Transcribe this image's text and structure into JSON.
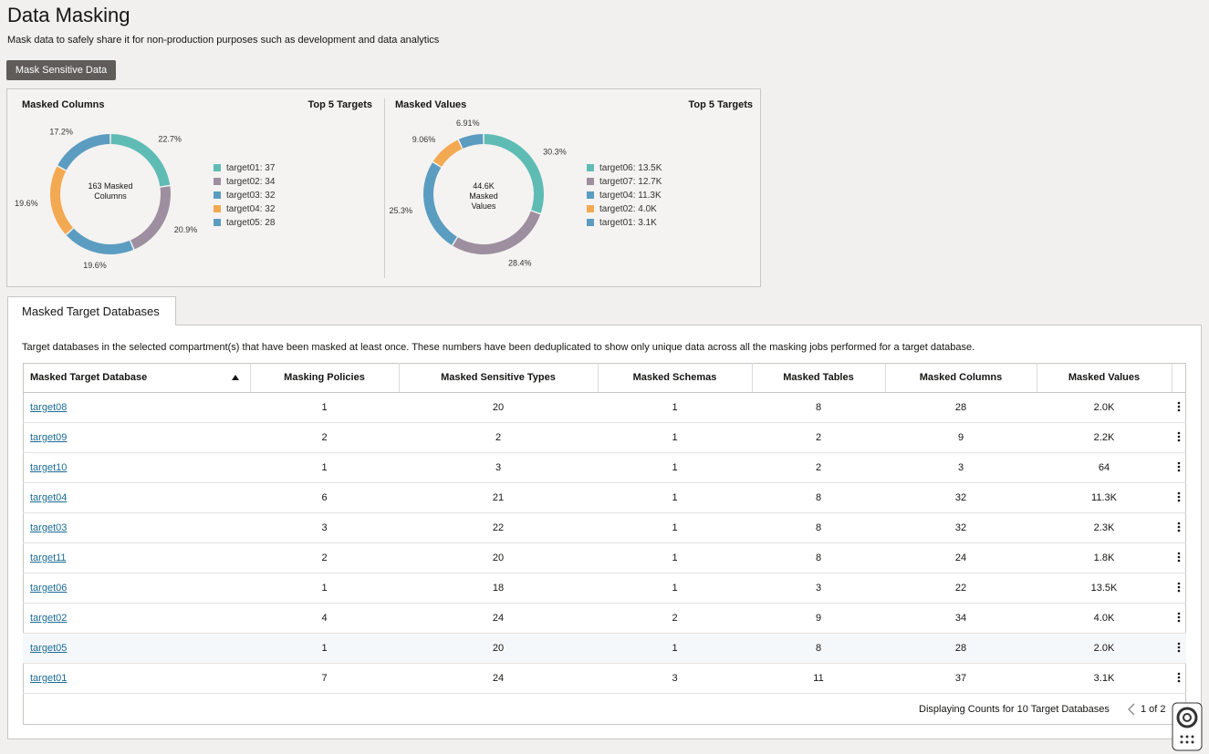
{
  "header": {
    "title": "Data Masking",
    "subtitle": "Mask data to safely share it for non-production purposes such as development and data analytics"
  },
  "button": "Mask Sensitive Data",
  "charts": [
    {
      "title": "Masked Columns",
      "subtitle": "Top 5 Targets",
      "center": "163 Masked Columns",
      "values": [
        22.7,
        20.9,
        19.6,
        19.6,
        17.2
      ],
      "value_labels": [
        "22.7%",
        "20.9%",
        "19.6%",
        "19.6%",
        "17.2%"
      ],
      "colors": [
        "#5fbcb5",
        "#9d8f9f",
        "#5b9dc0",
        "#f3a952",
        "#5c9cc0"
      ],
      "legend": [
        "target01: 37",
        "target02: 34",
        "target03: 32",
        "target04: 32",
        "target05: 28"
      ]
    },
    {
      "title": "Masked Values",
      "subtitle": "Top 5 Targets",
      "center": "44.6K Masked Values",
      "values": [
        30.3,
        28.4,
        25.3,
        9.06,
        6.91
      ],
      "value_labels": [
        "30.3%",
        "28.4%",
        "25.3%",
        "9.06%",
        "6.91%"
      ],
      "colors": [
        "#5fbcb5",
        "#9d8f9f",
        "#5b9dc0",
        "#f3a952",
        "#5c9cc0"
      ],
      "legend": [
        "target06: 13.5K",
        "target07: 12.7K",
        "target04: 11.3K",
        "target02: 4.0K",
        "target01: 3.1K"
      ]
    }
  ],
  "tab": "Masked Target Databases",
  "description": "Target databases in the selected compartment(s) that have been masked at least once. These numbers have been deduplicated to show only unique data across all the masking jobs performed for a target database.",
  "table": {
    "columns": [
      "Masked Target Database",
      "Masking Policies",
      "Masked Sensitive Types",
      "Masked Schemas",
      "Masked Tables",
      "Masked Columns",
      "Masked Values"
    ],
    "rows": [
      [
        "target08",
        1,
        20,
        1,
        8,
        28,
        "2.0K"
      ],
      [
        "target09",
        2,
        2,
        1,
        2,
        9,
        "2.2K"
      ],
      [
        "target10",
        1,
        3,
        1,
        2,
        3,
        "64"
      ],
      [
        "target04",
        6,
        21,
        1,
        8,
        32,
        "11.3K"
      ],
      [
        "target03",
        3,
        22,
        1,
        8,
        32,
        "2.3K"
      ],
      [
        "target11",
        2,
        20,
        1,
        8,
        24,
        "1.8K"
      ],
      [
        "target06",
        1,
        18,
        1,
        3,
        22,
        "13.5K"
      ],
      [
        "target02",
        4,
        24,
        2,
        9,
        34,
        "4.0K"
      ],
      [
        "target05",
        1,
        20,
        1,
        8,
        28,
        "2.0K"
      ],
      [
        "target01",
        7,
        24,
        3,
        11,
        37,
        "3.1K"
      ]
    ]
  },
  "footer": {
    "count": "Displaying Counts for 10 Target Databases",
    "page": "1 of 2"
  }
}
